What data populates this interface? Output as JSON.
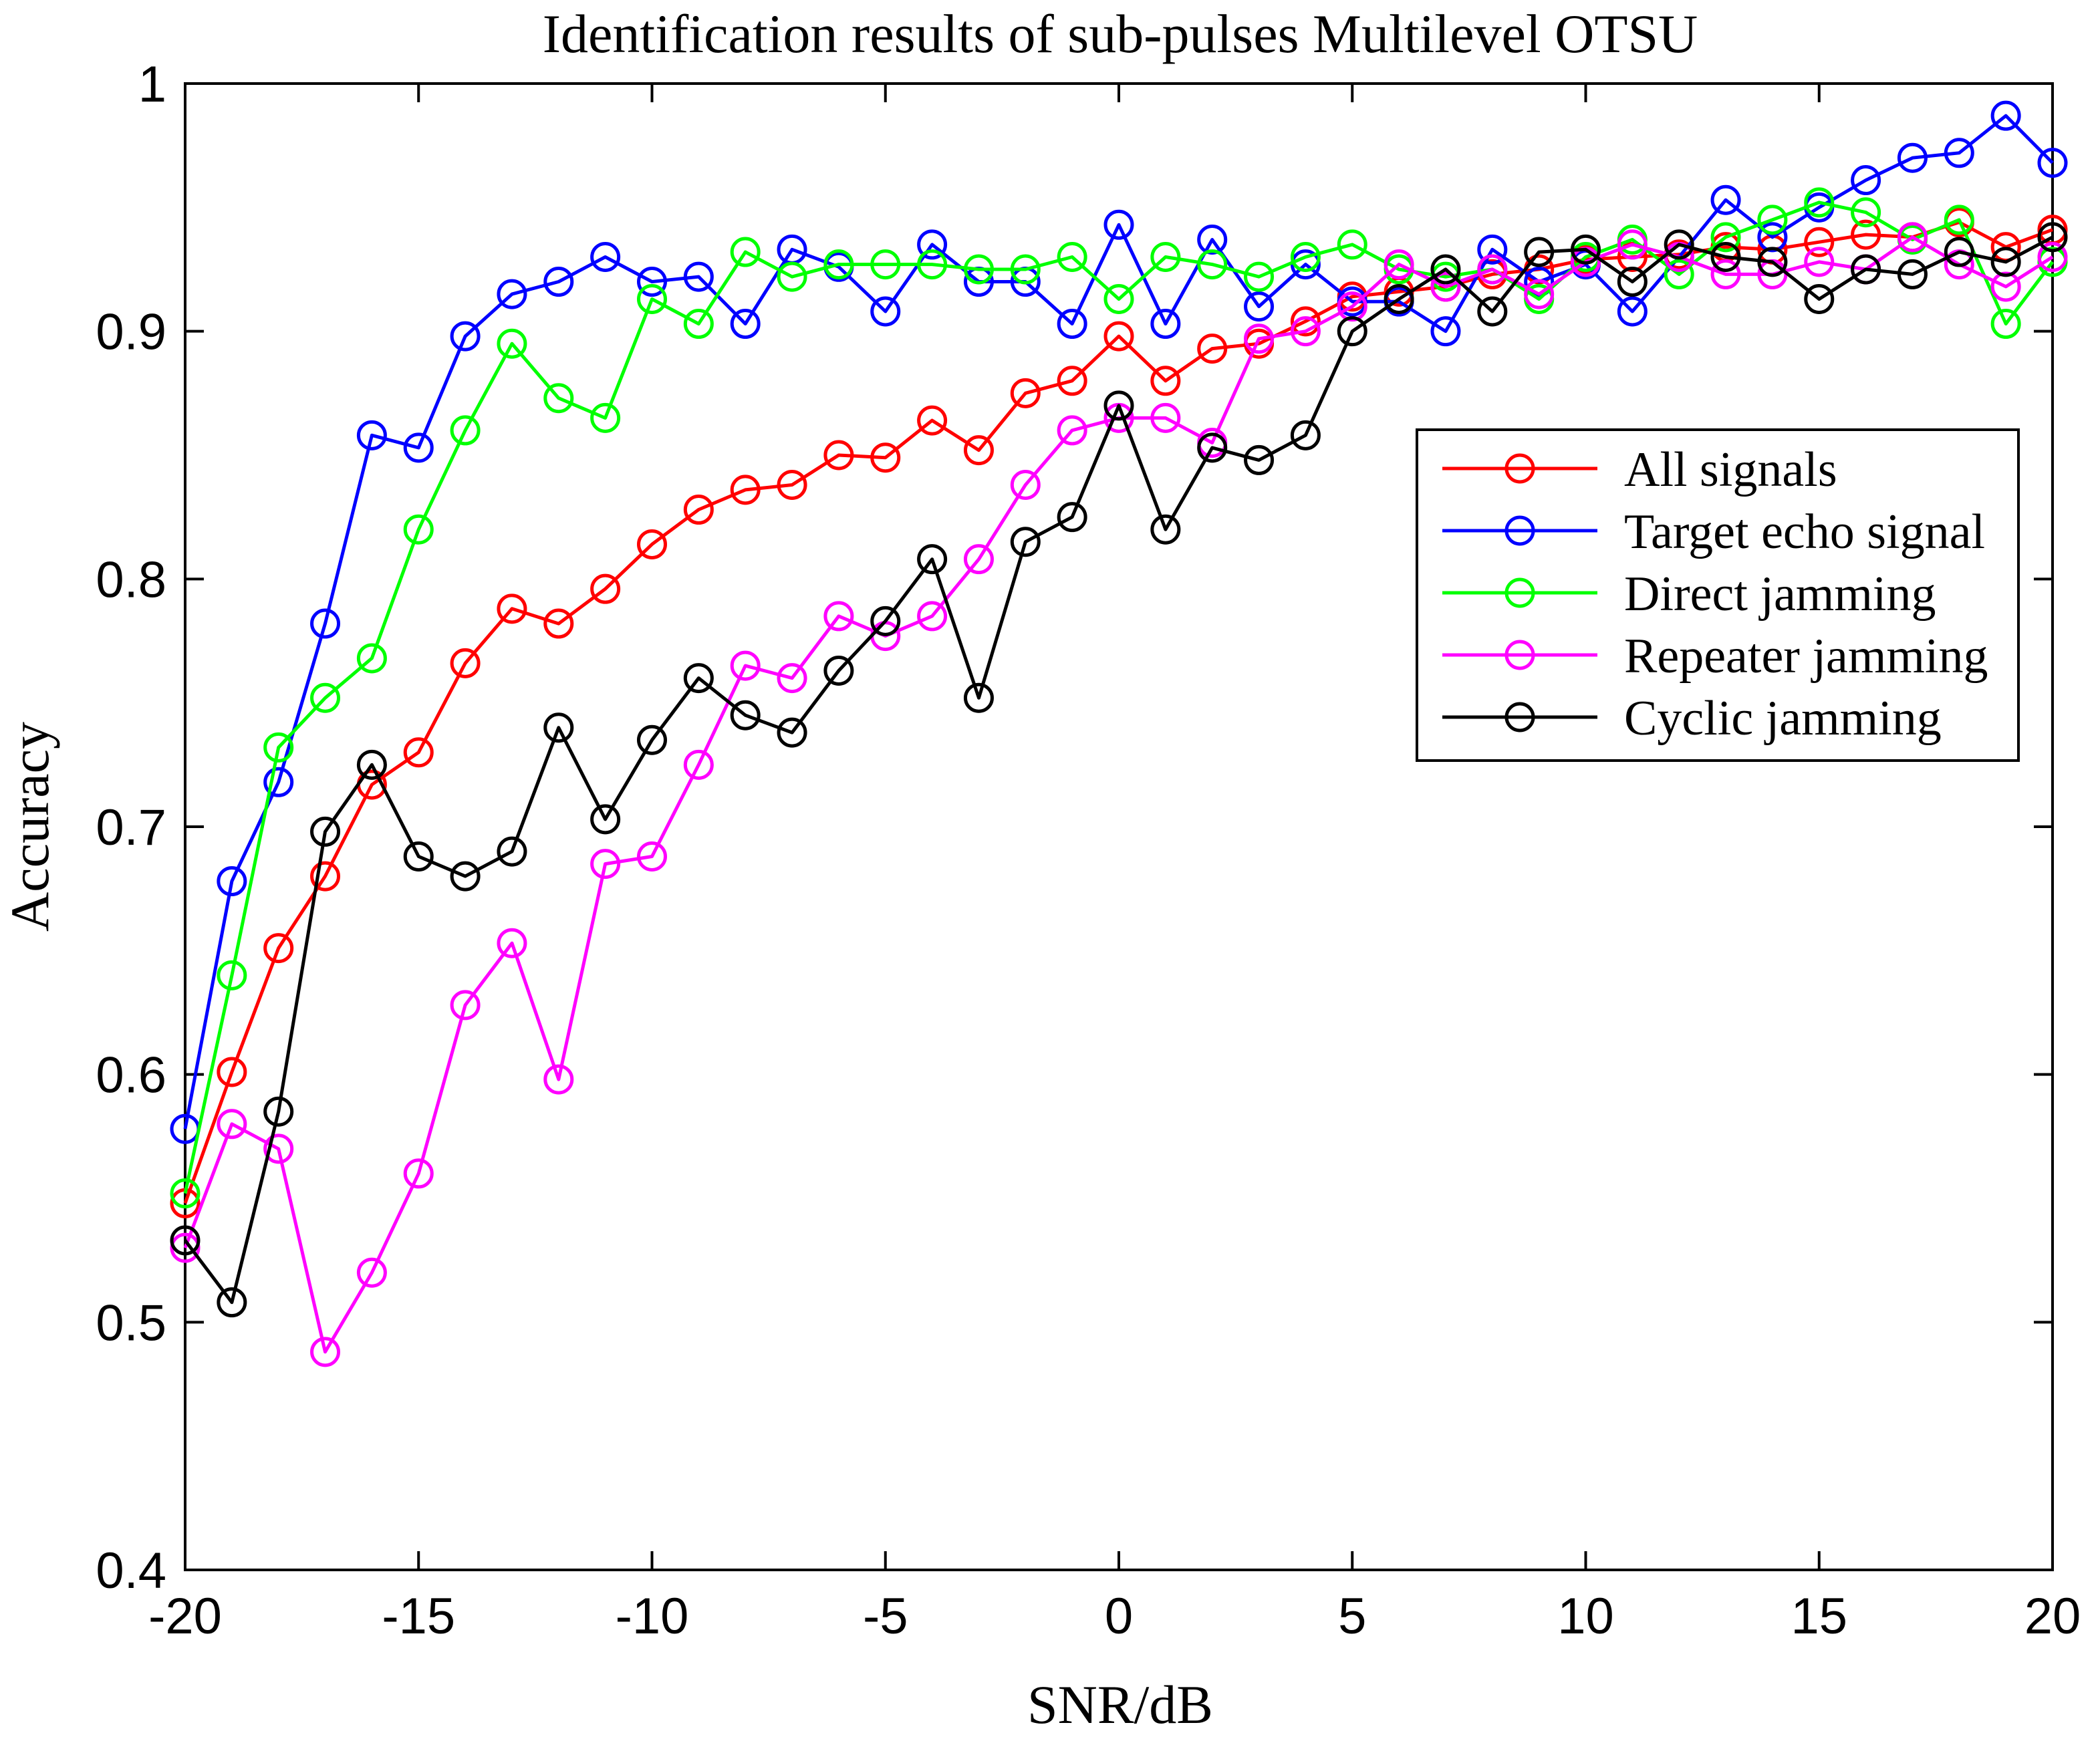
{
  "chart_data": {
    "type": "line",
    "title": "Identification results of sub-pulses Multilevel OTSU",
    "xlabel": "SNR/dB",
    "ylabel": "Accuracy",
    "xlim": [
      -20,
      20
    ],
    "ylim": [
      0.4,
      1
    ],
    "xticks": [
      -20,
      -15,
      -10,
      -5,
      0,
      5,
      10,
      15,
      20
    ],
    "xtick_labels": [
      "-20",
      "-15",
      "-10",
      "-5",
      "0",
      "5",
      "10",
      "15",
      "20"
    ],
    "yticks": [
      0.4,
      0.5,
      0.6,
      0.7,
      0.8,
      0.9,
      1
    ],
    "ytick_labels": [
      "0.4",
      "0.5",
      "0.6",
      "0.7",
      "0.8",
      "0.9",
      "1"
    ],
    "grid": false,
    "legend_position": "right, upper-middle",
    "marker": "circle",
    "x": [
      -20,
      -19,
      -18,
      -17,
      -16,
      -15,
      -14,
      -13,
      -12,
      -11,
      -10,
      -9,
      -8,
      -7,
      -6,
      -5,
      -4,
      -3,
      -2,
      -1,
      0,
      1,
      2,
      3,
      4,
      5,
      6,
      7,
      8,
      9,
      10,
      11,
      12,
      13,
      14,
      15,
      16,
      17,
      18,
      19,
      20
    ],
    "series": [
      {
        "name": "All signals",
        "color": "#ff0000",
        "values": [
          0.548,
          0.601,
          0.651,
          0.68,
          0.717,
          0.73,
          0.766,
          0.788,
          0.782,
          0.796,
          0.814,
          0.828,
          0.836,
          0.838,
          0.85,
          0.849,
          0.864,
          0.852,
          0.875,
          0.88,
          0.898,
          0.88,
          0.893,
          0.895,
          0.904,
          0.914,
          0.916,
          0.918,
          0.923,
          0.925,
          0.929,
          0.93,
          0.931,
          0.934,
          0.933,
          0.936,
          0.939,
          0.938,
          0.944,
          0.934,
          0.941
        ]
      },
      {
        "name": "Target echo signal",
        "color": "#0000ff",
        "values": [
          0.578,
          0.678,
          0.718,
          0.782,
          0.858,
          0.853,
          0.898,
          0.915,
          0.92,
          0.93,
          0.92,
          0.922,
          0.903,
          0.933,
          0.926,
          0.908,
          0.935,
          0.92,
          0.92,
          0.903,
          0.943,
          0.903,
          0.937,
          0.91,
          0.927,
          0.912,
          0.912,
          0.9,
          0.933,
          0.92,
          0.927,
          0.908,
          0.93,
          0.953,
          0.938,
          0.95,
          0.961,
          0.97,
          0.972,
          0.987,
          0.968
        ]
      },
      {
        "name": "Direct jamming",
        "color": "#00ff00",
        "values": [
          0.552,
          0.64,
          0.732,
          0.752,
          0.768,
          0.82,
          0.86,
          0.895,
          0.873,
          0.865,
          0.913,
          0.903,
          0.932,
          0.922,
          0.927,
          0.927,
          0.927,
          0.925,
          0.925,
          0.93,
          0.913,
          0.93,
          0.927,
          0.922,
          0.93,
          0.935,
          0.925,
          0.922,
          0.925,
          0.913,
          0.93,
          0.937,
          0.923,
          0.938,
          0.945,
          0.952,
          0.948,
          0.937,
          0.945,
          0.903,
          0.928
        ]
      },
      {
        "name": "Repeater jamming",
        "color": "#ff00ff",
        "values": [
          0.53,
          0.58,
          0.57,
          0.488,
          0.52,
          0.56,
          0.628,
          0.653,
          0.598,
          0.685,
          0.688,
          0.725,
          0.765,
          0.76,
          0.785,
          0.777,
          0.785,
          0.808,
          0.838,
          0.86,
          0.865,
          0.865,
          0.855,
          0.897,
          0.9,
          0.91,
          0.927,
          0.918,
          0.925,
          0.915,
          0.928,
          0.935,
          0.93,
          0.923,
          0.923,
          0.928,
          0.925,
          0.938,
          0.927,
          0.918,
          0.93
        ]
      },
      {
        "name": "Cyclic jamming",
        "color": "#000000",
        "values": [
          0.533,
          0.508,
          0.585,
          0.698,
          0.725,
          0.688,
          0.68,
          0.69,
          0.74,
          0.703,
          0.735,
          0.76,
          0.745,
          0.738,
          0.763,
          0.783,
          0.808,
          0.752,
          0.815,
          0.825,
          0.87,
          0.82,
          0.853,
          0.848,
          0.858,
          0.9,
          0.913,
          0.925,
          0.908,
          0.932,
          0.933,
          0.92,
          0.935,
          0.93,
          0.928,
          0.913,
          0.925,
          0.923,
          0.932,
          0.928,
          0.938
        ]
      }
    ]
  }
}
